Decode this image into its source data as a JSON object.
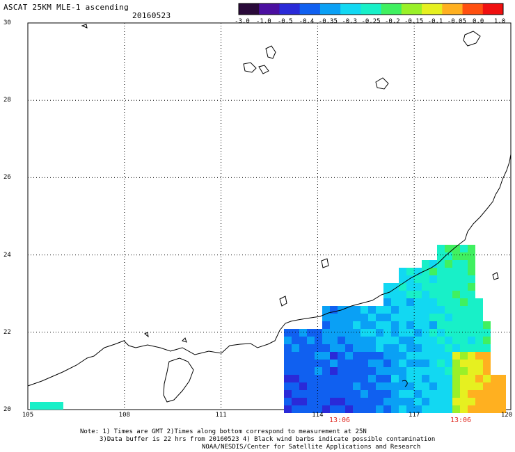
{
  "header": {
    "title": "ASCAT 25KM MLE-1 ascending",
    "date": "20160523"
  },
  "colorbar": {
    "labels": [
      "-3.0",
      "-1.0",
      "-0.5",
      "-0.4",
      "-0.35",
      "-0.3",
      "-0.25",
      "-0.2",
      "-0.15",
      "-0.1",
      "-0.05",
      "0.0",
      "1.0"
    ],
    "colors": [
      "#2a0a3a",
      "#4b0fa0",
      "#2a2ad8",
      "#1060f0",
      "#0aa0f5",
      "#12d8f2",
      "#18f0c8",
      "#40f060",
      "#9af028",
      "#e6f020",
      "#ffb020",
      "#ff5010",
      "#f01010"
    ]
  },
  "map": {
    "lon_range": [
      105,
      120
    ],
    "lat_range": [
      20,
      30
    ],
    "lat_ticks": [
      "30",
      "28",
      "26",
      "24",
      "22",
      "20"
    ],
    "lon_ticks": [
      "105",
      "108",
      "111",
      "114",
      "117",
      "120"
    ],
    "time_labels": [
      "13:06",
      "13:06"
    ]
  },
  "notes": {
    "line1": "Note: 1) Times are GMT 2)Times along bottom correspond to measurement at 25N",
    "line2": "3)Data buffer is 22 hrs from 20160523 4) Black wind barbs indicate possible contamination",
    "line3": "NOAA/NESDIS/Center for Satellite Applications and Research"
  }
}
